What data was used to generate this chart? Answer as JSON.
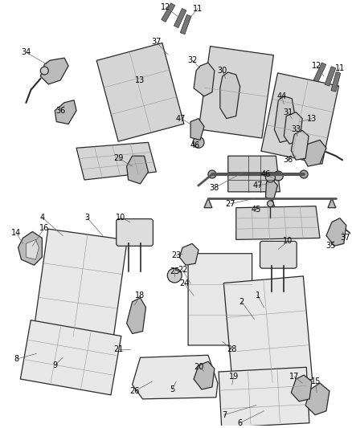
{
  "background_color": "#ffffff",
  "figure_width": 4.38,
  "figure_height": 5.33,
  "dpi": 100,
  "outline_color": "#2a2a2a",
  "line_color": "#555555",
  "label_fontsize": 7.0,
  "seat_fc": "#e8e8e8",
  "frame_fc": "#d5d5d5",
  "metal_fc": "#c8c8c8"
}
